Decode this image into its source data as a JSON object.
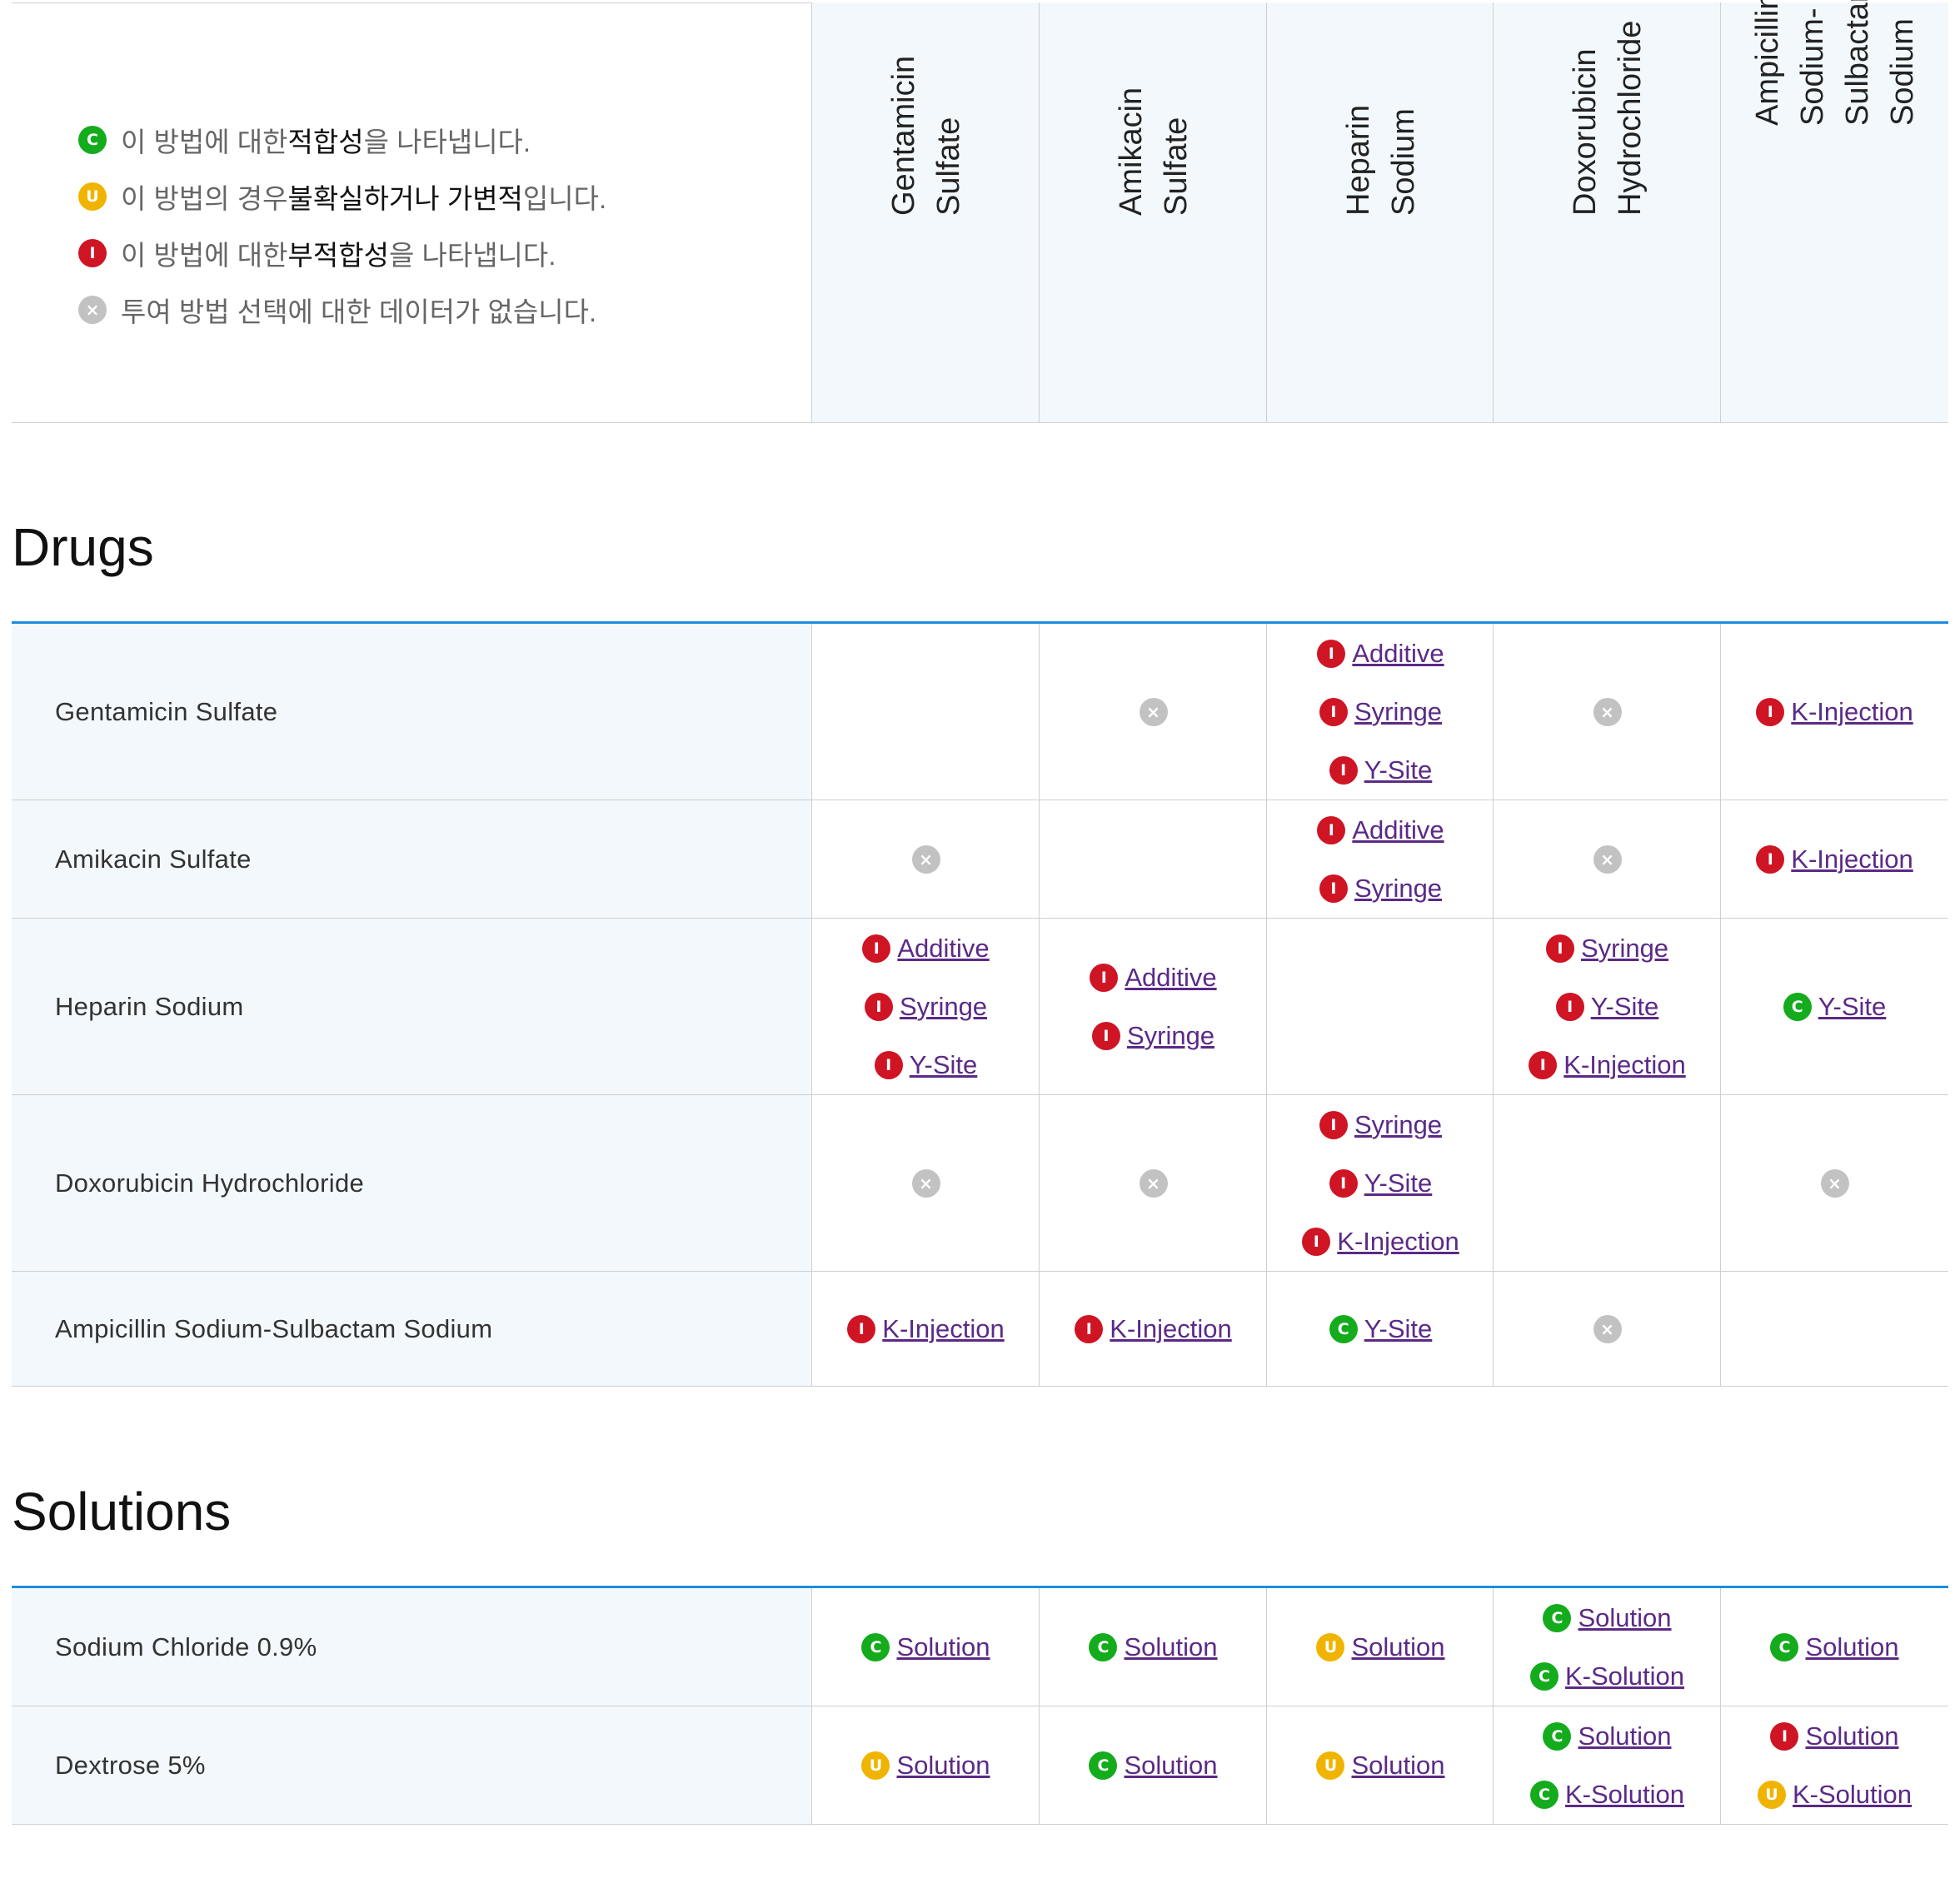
{
  "colors": {
    "compatible": "#14ab1d",
    "uncertain": "#f0b400",
    "incompatible": "#cf1424",
    "no_data": "#c2c2c2",
    "section_rule": "#1e8de0",
    "link": "#5b2a86",
    "header_bg": "#f3f8fc"
  },
  "legend": [
    {
      "status": "c",
      "icon": "C",
      "pre": "이 방법에 대한 ",
      "bold": "적합성",
      "post": "을 나타냅니다."
    },
    {
      "status": "u",
      "icon": "U",
      "pre": "이 방법의 경우 ",
      "bold": "불확실하거나 가변적",
      "post": "입니다."
    },
    {
      "status": "i",
      "icon": "I",
      "pre": "이 방법에 대한 ",
      "bold": "부적합성",
      "post": "을 나타냅니다."
    },
    {
      "status": "x",
      "icon": "×",
      "pre": "투여 방법 선택에 대한 데이터가 없습니다.",
      "bold": "",
      "post": ""
    }
  ],
  "columns": [
    {
      "lines": [
        "Gentamicin",
        "Sulfate"
      ]
    },
    {
      "lines": [
        "Amikacin",
        "Sulfate"
      ]
    },
    {
      "lines": [
        "Heparin",
        "Sodium"
      ]
    },
    {
      "lines": [
        "Doxorubicin",
        "Hydrochloride"
      ]
    },
    {
      "lines": [
        "Ampicillin",
        "Sodium-",
        "Sulbactam",
        "Sodium"
      ]
    }
  ],
  "sections": [
    {
      "title": "Drugs",
      "rows": [
        {
          "label": "Gentamicin Sulfate",
          "cells": [
            [],
            [
              {
                "s": "x"
              }
            ],
            [
              {
                "s": "i",
                "t": "Additive"
              },
              {
                "s": "i",
                "t": "Syringe"
              },
              {
                "s": "i",
                "t": "Y-Site"
              }
            ],
            [
              {
                "s": "x"
              }
            ],
            [
              {
                "s": "i",
                "t": "K-Injection"
              }
            ]
          ]
        },
        {
          "label": "Amikacin Sulfate",
          "cells": [
            [
              {
                "s": "x"
              }
            ],
            [],
            [
              {
                "s": "i",
                "t": "Additive"
              },
              {
                "s": "i",
                "t": "Syringe"
              }
            ],
            [
              {
                "s": "x"
              }
            ],
            [
              {
                "s": "i",
                "t": "K-Injection"
              }
            ]
          ]
        },
        {
          "label": "Heparin Sodium",
          "cells": [
            [
              {
                "s": "i",
                "t": "Additive"
              },
              {
                "s": "i",
                "t": "Syringe"
              },
              {
                "s": "i",
                "t": "Y-Site"
              }
            ],
            [
              {
                "s": "i",
                "t": "Additive"
              },
              {
                "s": "i",
                "t": "Syringe"
              }
            ],
            [],
            [
              {
                "s": "i",
                "t": "Syringe"
              },
              {
                "s": "i",
                "t": "Y-Site"
              },
              {
                "s": "i",
                "t": "K-Injection"
              }
            ],
            [
              {
                "s": "c",
                "t": "Y-Site"
              }
            ]
          ]
        },
        {
          "label": "Doxorubicin Hydrochloride",
          "cells": [
            [
              {
                "s": "x"
              }
            ],
            [
              {
                "s": "x"
              }
            ],
            [
              {
                "s": "i",
                "t": "Syringe"
              },
              {
                "s": "i",
                "t": "Y-Site"
              },
              {
                "s": "i",
                "t": "K-Injection"
              }
            ],
            [],
            [
              {
                "s": "x"
              }
            ]
          ]
        },
        {
          "label": "Ampicillin Sodium-Sulbactam Sodium",
          "cells": [
            [
              {
                "s": "i",
                "t": "K-Injection"
              }
            ],
            [
              {
                "s": "i",
                "t": "K-Injection"
              }
            ],
            [
              {
                "s": "c",
                "t": "Y-Site"
              }
            ],
            [
              {
                "s": "x"
              }
            ],
            []
          ]
        }
      ]
    },
    {
      "title": "Solutions",
      "rows": [
        {
          "label": "Sodium Chloride 0.9%",
          "cells": [
            [
              {
                "s": "c",
                "t": "Solution"
              }
            ],
            [
              {
                "s": "c",
                "t": "Solution"
              }
            ],
            [
              {
                "s": "u",
                "t": "Solution"
              }
            ],
            [
              {
                "s": "c",
                "t": "Solution"
              },
              {
                "s": "c",
                "t": "K-Solution"
              }
            ],
            [
              {
                "s": "c",
                "t": "Solution"
              }
            ]
          ]
        },
        {
          "label": "Dextrose 5%",
          "cells": [
            [
              {
                "s": "u",
                "t": "Solution"
              }
            ],
            [
              {
                "s": "c",
                "t": "Solution"
              }
            ],
            [
              {
                "s": "u",
                "t": "Solution"
              }
            ],
            [
              {
                "s": "c",
                "t": "Solution"
              },
              {
                "s": "c",
                "t": "K-Solution"
              }
            ],
            [
              {
                "s": "i",
                "t": "Solution"
              },
              {
                "s": "u",
                "t": "K-Solution"
              }
            ]
          ]
        }
      ]
    }
  ]
}
